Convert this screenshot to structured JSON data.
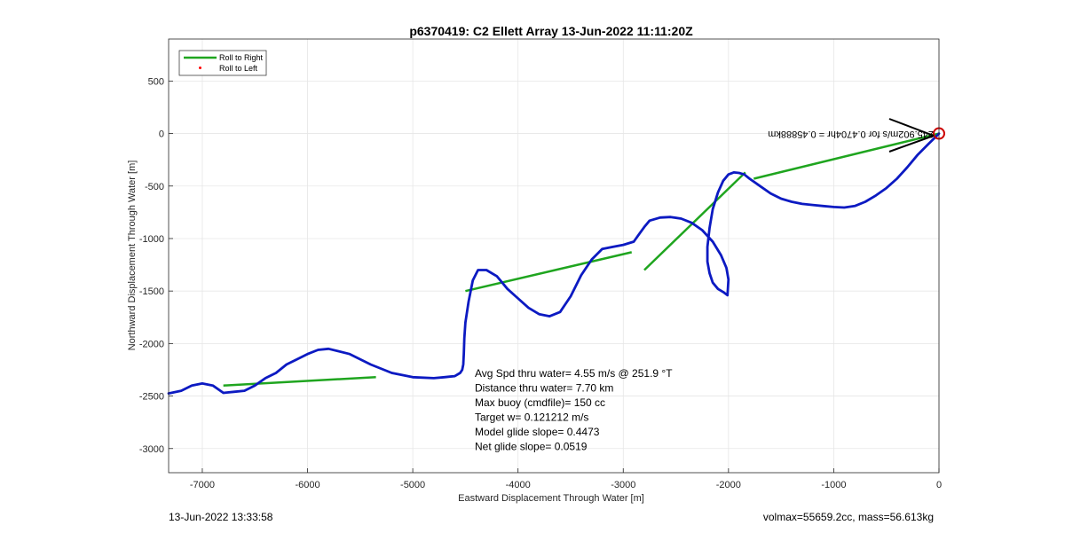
{
  "chart_data": {
    "type": "line",
    "title": "p6370419: C2 Ellett Array 13-Jun-2022 11:11:20Z",
    "xlabel": "Eastward Displacement Through Water [m]",
    "ylabel": "Northward Displacement Through Water [m]",
    "xlim": [
      -7320,
      0
    ],
    "ylim": [
      -3230,
      900
    ],
    "xticks": [
      -7000,
      -6000,
      -5000,
      -4000,
      -3000,
      -2000,
      -1000,
      0
    ],
    "yticks": [
      -3000,
      -2500,
      -2000,
      -1500,
      -1000,
      -500,
      0,
      500
    ],
    "grid": true,
    "legend": {
      "placement": "top-left",
      "entries": [
        {
          "label": "Roll to Right",
          "color": "#1fa51f",
          "style": "line"
        },
        {
          "label": "Roll to Left",
          "color": "#ff0000",
          "style": "dot"
        }
      ]
    },
    "series": [
      {
        "color": "#0c1ac2",
        "x": [
          0,
          -100,
          -200,
          -300,
          -400,
          -500,
          -600,
          -700,
          -800,
          -900,
          -1000,
          -1100,
          -1200,
          -1300,
          -1400,
          -1500,
          -1600,
          -1700,
          -1800,
          -1850,
          -1900,
          -1950,
          -2000,
          -2050,
          -2100,
          -2150,
          -2180,
          -2200,
          -2200,
          -2180,
          -2150,
          -2100,
          -2050,
          -2010,
          -2000,
          -2020,
          -2070,
          -2150,
          -2250,
          -2350,
          -2450,
          -2550,
          -2650,
          -2750,
          -2800,
          -2850,
          -2900,
          -3000,
          -3100,
          -3200,
          -3300,
          -3400,
          -3500,
          -3600,
          -3700,
          -3800,
          -3900,
          -4000,
          -4100,
          -4200,
          -4300,
          -4380,
          -4430,
          -4470,
          -4500,
          -4510,
          -4515,
          -4520,
          -4530,
          -4550,
          -4600,
          -4700,
          -4800,
          -5000,
          -5200,
          -5400,
          -5600,
          -5800,
          -5900,
          -6000,
          -6100,
          -6200,
          -6300,
          -6400,
          -6500,
          -6600,
          -6700,
          -6800,
          -6900,
          -7000,
          -7100,
          -7200,
          -7320
        ],
        "y": [
          0,
          -100,
          -200,
          -320,
          -430,
          -520,
          -590,
          -650,
          -690,
          -705,
          -700,
          -690,
          -680,
          -670,
          -650,
          -620,
          -570,
          -500,
          -430,
          -390,
          -375,
          -370,
          -390,
          -450,
          -560,
          -720,
          -900,
          -1080,
          -1220,
          -1330,
          -1420,
          -1480,
          -1510,
          -1540,
          -1390,
          -1280,
          -1160,
          -1030,
          -920,
          -850,
          -810,
          -795,
          -800,
          -830,
          -890,
          -960,
          -1030,
          -1060,
          -1080,
          -1100,
          -1200,
          -1350,
          -1550,
          -1700,
          -1740,
          -1720,
          -1660,
          -1570,
          -1480,
          -1360,
          -1300,
          -1300,
          -1400,
          -1600,
          -1800,
          -1950,
          -2100,
          -2200,
          -2250,
          -2280,
          -2310,
          -2320,
          -2330,
          -2320,
          -2280,
          -2200,
          -2100,
          -2050,
          -2060,
          -2100,
          -2150,
          -2200,
          -2280,
          -2330,
          -2400,
          -2450,
          -2460,
          -2470,
          -2400,
          -2380,
          -2400,
          -2450,
          -2475
        ],
        "name": ""
      },
      {
        "color": "#1fa51f",
        "segments": [
          {
            "x": [
              -6800,
              -5350
            ],
            "y": [
              -2400,
              -2320
            ]
          },
          {
            "x": [
              -4500,
              -2920
            ],
            "y": [
              -1500,
              -1130
            ]
          },
          {
            "x": [
              -2800,
              -1840
            ],
            "y": [
              -1300,
              -370
            ]
          },
          {
            "x": [
              -1760,
              0
            ],
            "y": [
              -430,
              0
            ]
          }
        ],
        "name": ""
      }
    ],
    "endpoint_marker": {
      "x": 0,
      "y": 0,
      "color": "#cc0000"
    },
    "annotations": [
      {
        "text": "Avg Spd thru water=  4.55 m/s @ 251.9 °T"
      },
      {
        "text": "Distance thru water=  7.70 km"
      },
      {
        "text": "Max buoy (cmdfile)= 150 cc"
      },
      {
        "text": "Target w= 0.121212 m/s"
      },
      {
        "text": "Model glide slope= 0.4473"
      },
      {
        "text": "Net glide slope= 0.0519"
      }
    ],
    "arrow_label": "245.902m/s for 0.4704hr = 0.45888km"
  },
  "footer": {
    "left": "13-Jun-2022 13:33:58",
    "right": "volmax=55659.2cc, mass=56.613kg"
  }
}
